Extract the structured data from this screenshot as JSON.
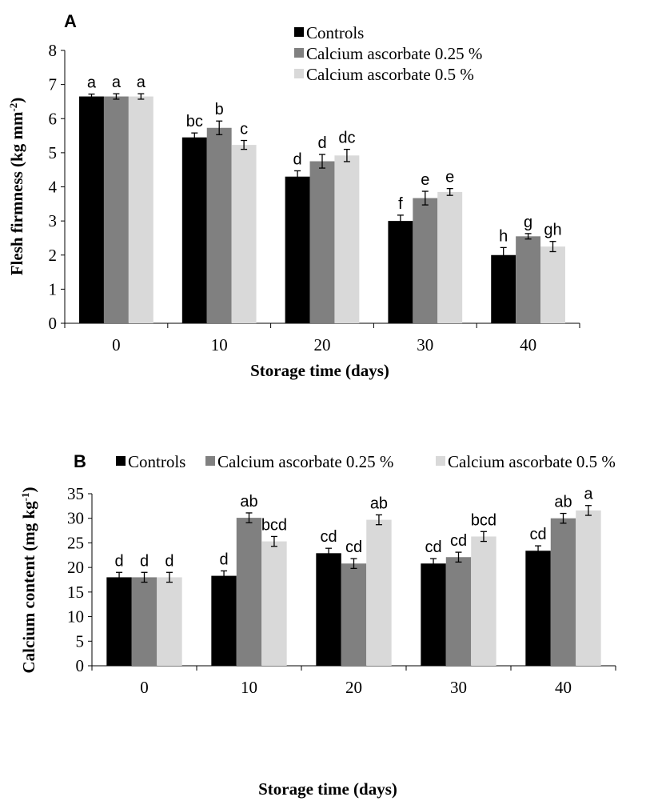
{
  "chart_data": [
    {
      "type": "bar",
      "panel_label": "A",
      "xlabel": "Storage time (days)",
      "ylabel": "Flesh firmness (kg mm",
      "ylabel_sup": "-2",
      "ylabel_close": ")",
      "ylim": [
        0,
        8
      ],
      "yticks": [
        "0",
        "1",
        "2",
        "3",
        "4",
        "5",
        "6",
        "7",
        "8"
      ],
      "categories": [
        "0",
        "10",
        "20",
        "30",
        "40"
      ],
      "legend_position": "top-right, stacked",
      "series": [
        {
          "name": "Controls",
          "color": "#000000",
          "values": [
            6.65,
            5.45,
            4.3,
            3.0,
            2.0
          ],
          "errors": [
            0.07,
            0.13,
            0.17,
            0.17,
            0.22
          ],
          "labels": [
            "a",
            "bc",
            "d",
            "f",
            "h"
          ]
        },
        {
          "name": "Calcium ascorbate 0.25 %",
          "color": "#808080",
          "values": [
            6.65,
            5.73,
            4.75,
            3.67,
            2.55
          ],
          "errors": [
            0.08,
            0.2,
            0.2,
            0.2,
            0.08
          ],
          "labels": [
            "a",
            "b",
            "d",
            "e",
            "g"
          ]
        },
        {
          "name": "Calcium ascorbate 0.5 %",
          "color": "#d9d9d9",
          "values": [
            6.65,
            5.23,
            4.92,
            3.85,
            2.25
          ],
          "errors": [
            0.08,
            0.13,
            0.18,
            0.1,
            0.15
          ],
          "labels": [
            "a",
            "c",
            "dc",
            "e",
            "gh"
          ]
        }
      ]
    },
    {
      "type": "bar",
      "panel_label": "B",
      "xlabel": "Storage time (days)",
      "ylabel": "Calcium content (mg kg",
      "ylabel_sup": "-1",
      "ylabel_close": ")",
      "ylim": [
        0,
        35
      ],
      "yticks": [
        "0",
        "5",
        "10",
        "15",
        "20",
        "25",
        "30",
        "35"
      ],
      "categories": [
        "0",
        "10",
        "20",
        "30",
        "40"
      ],
      "legend_position": "top, horizontal",
      "series": [
        {
          "name": "Controls",
          "color": "#000000",
          "values": [
            18.0,
            18.3,
            22.9,
            20.8,
            23.4
          ],
          "errors": [
            1.0,
            1.0,
            1.0,
            1.0,
            1.0
          ],
          "labels": [
            "d",
            "d",
            "cd",
            "cd",
            "cd"
          ]
        },
        {
          "name": "Calcium ascorbate 0.25 %",
          "color": "#808080",
          "values": [
            18.0,
            30.1,
            20.8,
            22.1,
            30.0
          ],
          "errors": [
            1.0,
            1.0,
            1.0,
            1.0,
            1.0
          ],
          "labels": [
            "d",
            "ab",
            "cd",
            "cd",
            "ab"
          ]
        },
        {
          "name": "Calcium ascorbate 0.5 %",
          "color": "#d9d9d9",
          "values": [
            18.0,
            25.3,
            29.7,
            26.3,
            31.6
          ],
          "errors": [
            1.0,
            1.0,
            1.0,
            1.0,
            1.0
          ],
          "labels": [
            "d",
            "bcd",
            "ab",
            "bcd",
            "a"
          ]
        }
      ]
    }
  ]
}
